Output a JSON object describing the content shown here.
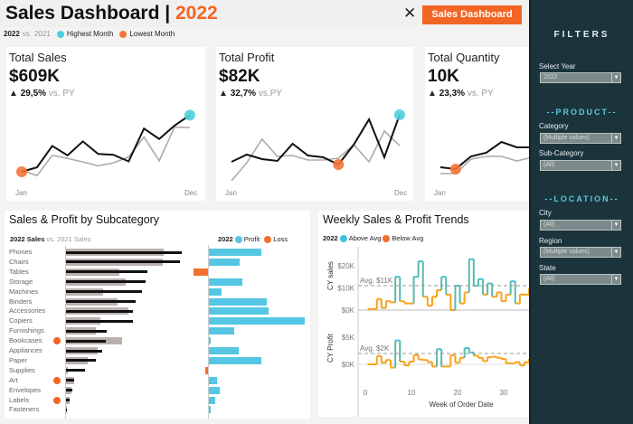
{
  "header": {
    "title": "Sales Dashboard",
    "separator": "|",
    "year": "2022",
    "close_icon": "close-icon",
    "dashboard_button": "Sales Dashboard"
  },
  "legend": {
    "current": "2022",
    "vs": "vs.",
    "previous": "2021",
    "highest": "Highest Month",
    "lowest": "Lowest Month"
  },
  "colors": {
    "accent": "#f26522",
    "highest": "#4ccfe0",
    "lowest": "#f5743a",
    "current_line": "#111111",
    "previous_line": "#b3a9a6",
    "sidebar": "#1b343c",
    "profit": "#55c6e3",
    "loss": "#f26f2d",
    "above_avg": "#3cc3dd",
    "below_avg": "#f7a21b"
  },
  "kpis": [
    {
      "title": "Total Sales",
      "value": "$609K",
      "change": "29,5%",
      "vs": "vs. PY",
      "first_label": "Jan",
      "last_label": "Dec",
      "ylim": [
        5,
        96
      ],
      "cy": [
        25,
        29.5,
        51,
        41.5,
        55.6,
        43,
        42.1,
        35.5,
        68.5,
        58,
        71.5,
        82
      ],
      "py": [
        26.5,
        21.1,
        41.5,
        38.5,
        34.9,
        31,
        34,
        40,
        60,
        36.1,
        70,
        69.4
      ],
      "lowest_index": 0,
      "highest_index": 11
    },
    {
      "title": "Total Profit",
      "value": "$82K",
      "change": "32,7%",
      "vs": "vs.PY",
      "first_label": "Jan",
      "last_label": "Dec",
      "ylim": [
        -4.25,
        20.75
      ],
      "cy": [
        4,
        6,
        4.75,
        4.25,
        9,
        5.75,
        5.25,
        3.25,
        8.75,
        15.75,
        5.25,
        17
      ],
      "py": [
        -1.25,
        3.75,
        10.25,
        5.5,
        5.75,
        4.5,
        4.5,
        5,
        8.75,
        4,
        12.5,
        8.5
      ],
      "lowest_index": 7,
      "highest_index": 11
    },
    {
      "title": "Total Quantity",
      "value": "10K",
      "change": "23,3%",
      "vs": "vs. PY",
      "first_label": "Jan",
      "ylim": [
        -0.28,
        3.72
      ],
      "cy": [
        0.8,
        0.72,
        1.28,
        1.44,
        1.92,
        1.68,
        1.68
      ],
      "py": [
        0.52,
        0.52,
        1.16,
        1.28,
        1.28,
        1.08,
        1.24
      ],
      "lowest_index": 1
    }
  ],
  "filters": {
    "title": "FILTERS",
    "select_year_label": "Select Year",
    "select_year": "2022",
    "product_heading": "--PRODUCT--",
    "category_label": "Category",
    "category": "(Multiple values)",
    "subcategory_label": "Sub-Category",
    "subcategory": "(All)",
    "location_heading": "--LOCATION--",
    "city_label": "City",
    "city": "(All)",
    "region_label": "Region",
    "region": "(Multiple values)",
    "state_label": "State",
    "state": "(All)"
  },
  "subcategory": {
    "title": "Sales & Profit by Subcategory",
    "sales_legend": {
      "current": "2022 Sales",
      "vs": "vs.",
      "previous": "2021 Sales"
    },
    "profit_legend": {
      "year": "2022",
      "profit": "Profit",
      "loss": "Loss"
    },
    "chart_data": {
      "type": "bar",
      "units": "$K (estimated)",
      "categories": [
        "Phones",
        "Chairs",
        "Tables",
        "Storage",
        "Machines",
        "Binders",
        "Accessories",
        "Copiers",
        "Furnishings",
        "Bookcases",
        "Appliances",
        "Paper",
        "Supplies",
        "Art",
        "Envelopes",
        "Labels",
        "Fasteners"
      ],
      "series": [
        {
          "name": "2022 Sales",
          "values": [
            105,
            103,
            74,
            72,
            69,
            63,
            61,
            61,
            37,
            36,
            33,
            27,
            17,
            7,
            6,
            3,
            1
          ]
        },
        {
          "name": "2021 Sales",
          "values": [
            89,
            88,
            48,
            54,
            34,
            47,
            57,
            31,
            27,
            51,
            29,
            20,
            2,
            7,
            5,
            3,
            1
          ]
        },
        {
          "name": "Profit",
          "values": [
            13.7,
            8.0,
            -4.0,
            8.7,
            3.3,
            15.1,
            15.6,
            25,
            6.6,
            0.5,
            7.8,
            13.7,
            -0.9,
            2.1,
            2.8,
            1.7,
            0.4
          ]
        }
      ],
      "flagged": [
        "Bookcases",
        "Art",
        "Labels"
      ]
    }
  },
  "weekly": {
    "title": "Weekly Sales & Profit Trends",
    "legend": {
      "year": "2022",
      "above": "Above Avg",
      "below": "Below Avg"
    },
    "chart_data": {
      "type": "line",
      "xlabel": "Week of Order Date",
      "x_ticks": [
        "0",
        "10",
        "20",
        "30"
      ],
      "weeks": [
        1,
        2,
        3,
        4,
        5,
        6,
        7,
        8,
        9,
        10,
        11,
        12,
        13,
        14,
        15,
        16,
        17,
        18,
        19,
        20,
        21,
        22,
        23,
        24,
        25,
        26,
        27,
        28,
        29,
        30,
        31,
        32,
        33,
        34,
        35,
        36
      ],
      "sales": {
        "ylabel": "CY sales",
        "ticks": [
          "$20K",
          "$10K",
          "$0K"
        ],
        "avg": 11,
        "avg_label": "Avg. $11K",
        "values": [
          0.5,
          0.5,
          5,
          1,
          4,
          3.5,
          15,
          4,
          3,
          3,
          15,
          22,
          6,
          2,
          6,
          9,
          15,
          7,
          0,
          11,
          3,
          8,
          23,
          11,
          14,
          7,
          12,
          6,
          8,
          4,
          7,
          13,
          3,
          7,
          7,
          10
        ]
      },
      "profit": {
        "ylabel": "CY Profit",
        "ticks": [
          "$5K",
          "$0K"
        ],
        "avg": 2,
        "avg_label": "Avg. $2K",
        "values": [
          0,
          0,
          1.5,
          0.3,
          0.8,
          -0.6,
          4.4,
          0.5,
          -0.2,
          0.5,
          1.7,
          0.9,
          0.8,
          0.4,
          -0.4,
          2.8,
          -0.4,
          -0.4,
          1.7,
          0.3,
          1.2,
          3,
          2.2,
          1.6,
          1.2,
          0.6,
          1.3,
          1.4,
          1.2,
          1.0,
          0.2,
          0.2,
          0.4,
          -0.2,
          0.4,
          1.0
        ]
      }
    }
  }
}
